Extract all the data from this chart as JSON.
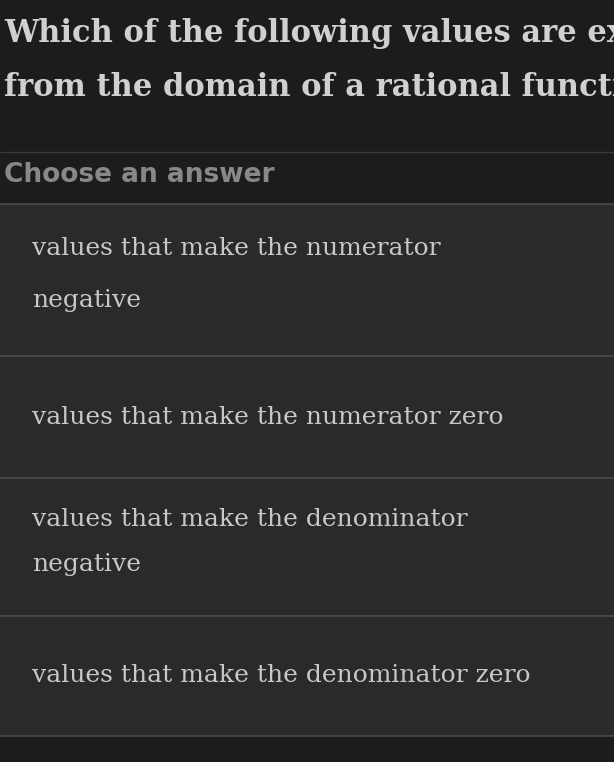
{
  "background_color": "#1c1c1c",
  "question_text_line1": "Which of the following values are excluded",
  "question_text_line2": "from the domain of a rational function?",
  "question_color": "#d0d0d0",
  "question_fontsize": 22,
  "section_label": "Choose an answer",
  "section_label_color": "#888888",
  "section_label_fontsize": 19,
  "divider_color": "#3a3a3a",
  "options": [
    [
      "values that make the numerator",
      "negative"
    ],
    [
      "values that make the numerator zero"
    ],
    [
      "values that make the denominator",
      "negative"
    ],
    [
      "values that make the denominator zero"
    ]
  ],
  "option_box_color": "#2a2a2a",
  "option_text_color": "#c8c8c8",
  "option_fontsize": 18,
  "option_border_color": "#4a4a4a",
  "fig_width": 6.14,
  "fig_height": 7.62,
  "dpi": 100
}
